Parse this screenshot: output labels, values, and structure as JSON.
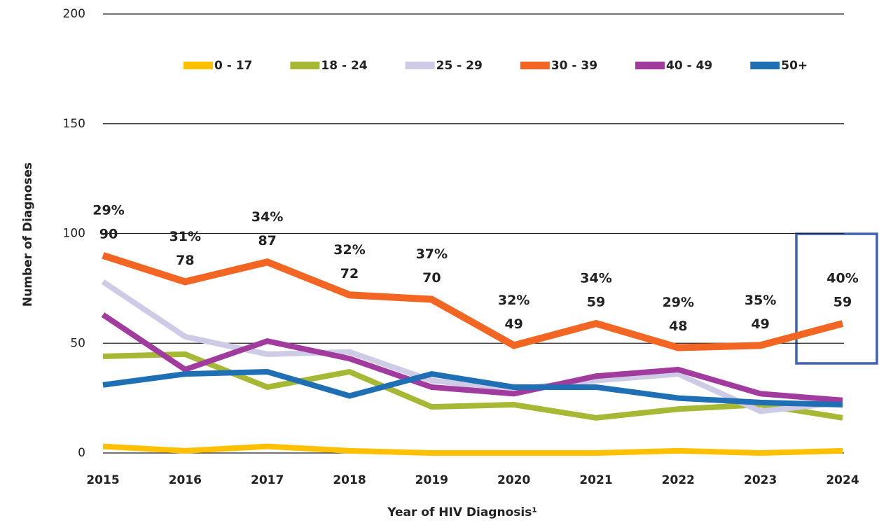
{
  "chart_data": {
    "type": "line",
    "y_label": "Number of Diagnoses",
    "x_label": "Year of HIV Diagnosis¹",
    "categories": [
      "2015",
      "2016",
      "2017",
      "2018",
      "2019",
      "2020",
      "2021",
      "2022",
      "2023",
      "2024"
    ],
    "ylim": [
      0,
      200
    ],
    "yticks": [
      0,
      50,
      100,
      150,
      200
    ],
    "grid": true,
    "legend": "top",
    "series": [
      {
        "name": "0 - 17",
        "color": "#ffc000",
        "values": [
          3,
          1,
          3,
          1,
          0,
          0,
          0,
          1,
          0,
          1
        ]
      },
      {
        "name": "18 - 24",
        "color": "#a6b834",
        "values": [
          44,
          45,
          30,
          37,
          21,
          22,
          16,
          20,
          22,
          16
        ]
      },
      {
        "name": "25 - 29",
        "color": "#cdcbe6",
        "values": [
          78,
          53,
          45,
          46,
          33,
          29,
          33,
          36,
          19,
          23
        ]
      },
      {
        "name": "30 - 39",
        "color": "#f26522",
        "values": [
          90,
          78,
          87,
          72,
          70,
          49,
          59,
          48,
          49,
          59
        ]
      },
      {
        "name": "40 - 49",
        "color": "#a23b9e",
        "values": [
          63,
          38,
          51,
          43,
          30,
          27,
          35,
          38,
          27,
          24
        ]
      },
      {
        "name": "50+",
        "color": "#1f6fb5",
        "values": [
          31,
          36,
          37,
          26,
          36,
          30,
          30,
          25,
          23,
          22
        ]
      }
    ],
    "share_labels": [
      "29%",
      "31%",
      "34%",
      "32%",
      "37%",
      "32%",
      "34%",
      "29%",
      "35%",
      "40%"
    ]
  }
}
